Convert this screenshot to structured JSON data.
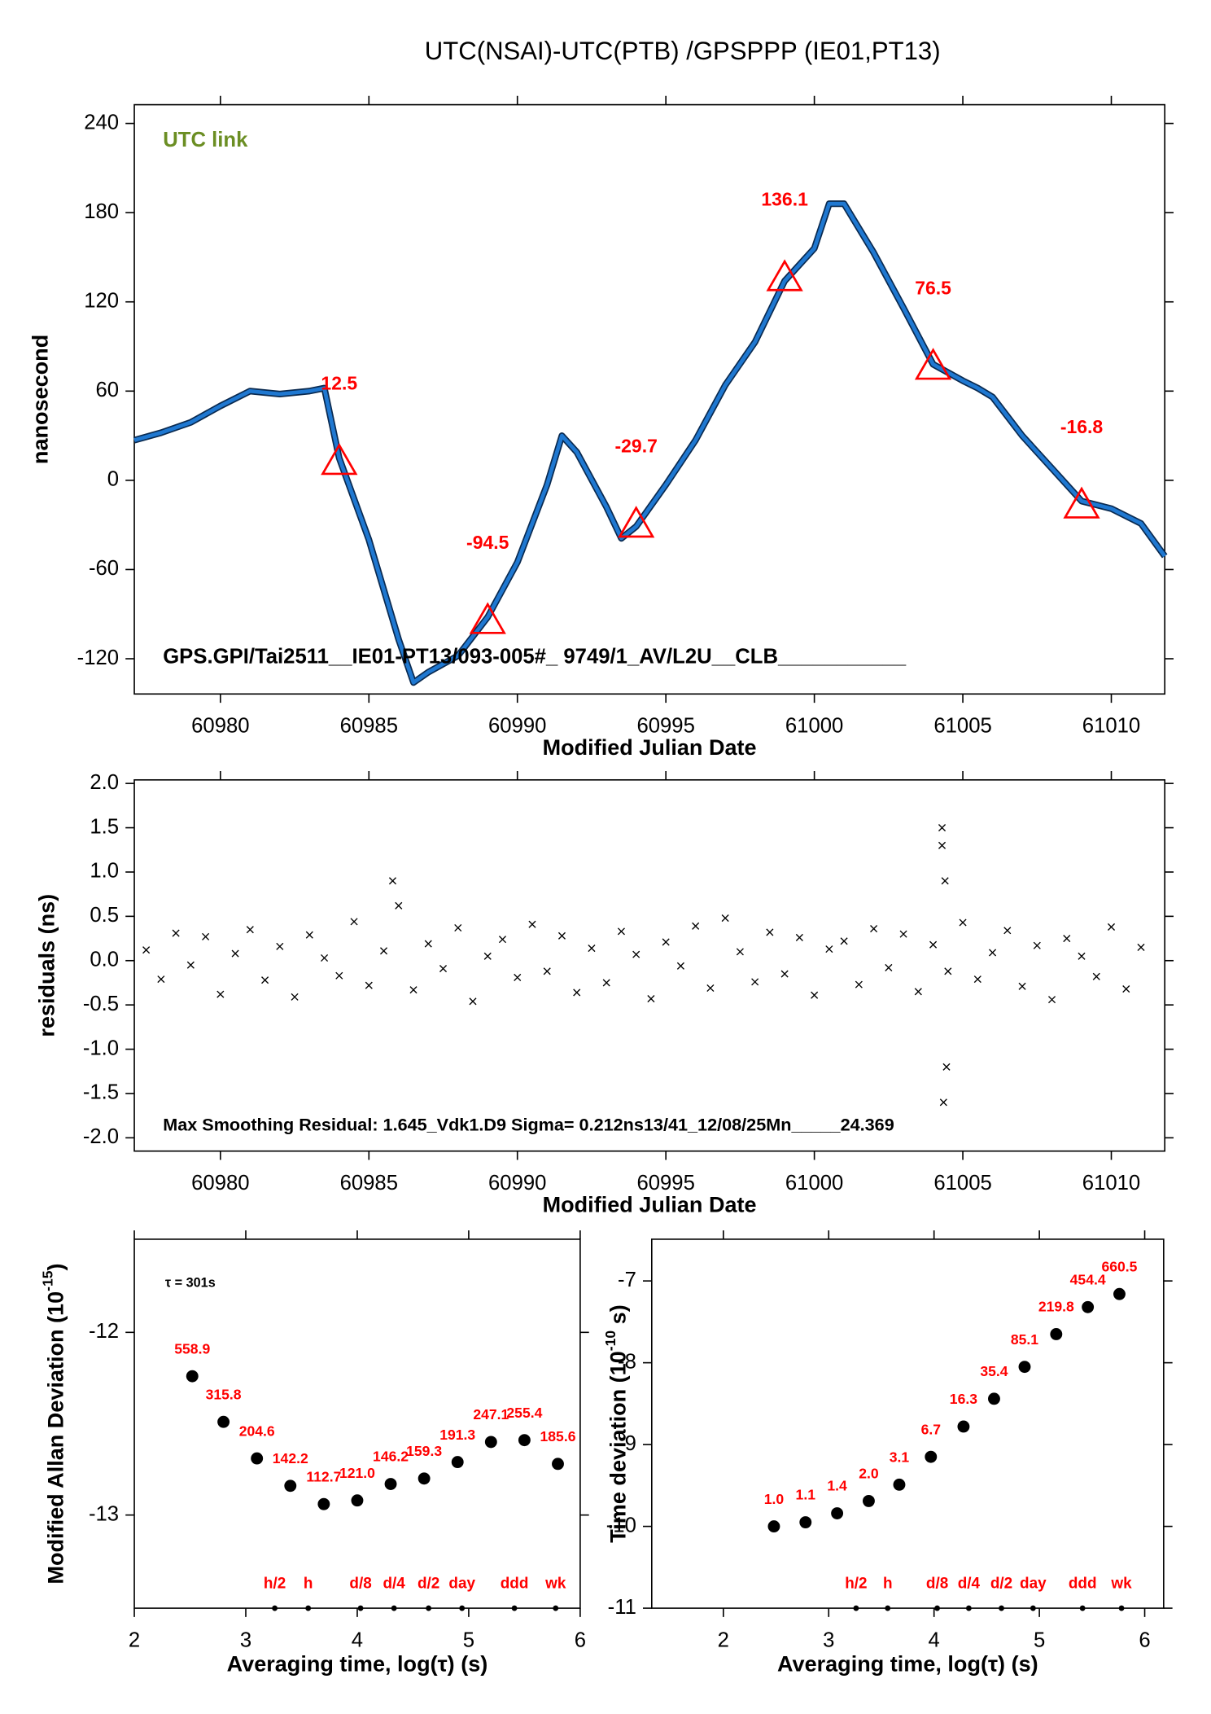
{
  "chart_data": [
    {
      "type": "line",
      "title": "UTC(NSAI)-UTC(PTB)  /GPSPPP  (IE01,PT13)",
      "annotation": "UTC link",
      "annotation_color": "#6b8e23",
      "footer_text": "GPS.GPI/Tai2511__IE01-PT13/093-005#_  9749/1_AV/L2U__CLB___________",
      "xlabel": "Modified Julian Date",
      "ylabel": "nanosecond",
      "xlim": [
        60977.1,
        61011.8
      ],
      "ylim": [
        -143.7,
        252.6
      ],
      "xticks": [
        60980,
        60985,
        60990,
        60995,
        61000,
        61005,
        61010
      ],
      "yticks": [
        -120,
        -60,
        0,
        60,
        120,
        180,
        240
      ],
      "x": [
        60977.1,
        60978,
        60979,
        60980,
        60981,
        60982,
        60983,
        60983.5,
        60984,
        60985,
        60986,
        60986.5,
        60987,
        60988,
        60989,
        60990,
        60991,
        60991.5,
        60992,
        60993,
        60993.5,
        60994,
        60995,
        60996,
        60997,
        60998,
        60999,
        61000,
        61000.5,
        61001,
        61002,
        61003,
        61004,
        61005,
        61005.5,
        61006,
        61007,
        61008,
        61009,
        61010,
        61011,
        61011.8
      ],
      "series": [
        {
          "color": "#1f78d1",
          "values": [
            27,
            32,
            39,
            50,
            60,
            58,
            60,
            62,
            15,
            -40,
            -107,
            -136,
            -129,
            -118,
            -92,
            -55,
            -3,
            30,
            19,
            -18,
            -39,
            -31,
            -3,
            27,
            64,
            93,
            134,
            156,
            186,
            186,
            153,
            116,
            78,
            67,
            62,
            56,
            30,
            8,
            -14,
            -19,
            -29,
            -51
          ]
        }
      ],
      "markers": {
        "color": "#ff0000",
        "x": [
          60984,
          60989,
          60994,
          60999,
          61004,
          61009
        ],
        "values": [
          12.5,
          -94.5,
          -29.7,
          136.1,
          76.5,
          -16.8
        ]
      }
    },
    {
      "type": "scatter",
      "footer_text": "Max Smoothing Residual: 1.645_Vdk1.D9  Sigma= 0.212ns13/41_12/08/25Mn_____24.369",
      "xlabel": "Modified Julian Date",
      "ylabel": "residuals (ns)",
      "xlim": [
        60977.1,
        61011.8
      ],
      "ylim": [
        -2.15,
        2.04
      ],
      "xticks": [
        60980,
        60985,
        60990,
        60995,
        61000,
        61005,
        61010
      ],
      "yticks": [
        {
          "value": -2,
          "label": "-2.0"
        },
        -1.5,
        {
          "value": -1,
          "label": "-1.0"
        },
        -0.5,
        {
          "value": 0,
          "label": "0.0"
        },
        0.5,
        {
          "value": 1,
          "label": "1.0"
        },
        1.5,
        {
          "value": 2,
          "label": "2.0"
        }
      ],
      "color": "#000000",
      "x": [
        60977.5,
        60978,
        60978.5,
        60979,
        60979.5,
        60980,
        60980.5,
        60981,
        60981.5,
        60982,
        60982.5,
        60983,
        60983.5,
        60984,
        60984.5,
        60985,
        60985.5,
        60986,
        60986.5,
        60987,
        60987.5,
        60988,
        60988.5,
        60989,
        60989.5,
        60990,
        60990.5,
        60991,
        60991.5,
        60992,
        60992.5,
        60993,
        60993.5,
        60994,
        60994.5,
        60995,
        60995.5,
        60996,
        60996.5,
        60997,
        60997.5,
        60998,
        60998.5,
        60999,
        60999.5,
        61000,
        61000.5,
        61001,
        61001.5,
        61002,
        61002.5,
        61003,
        61003.5,
        61004,
        61004.5,
        61005,
        61005.5,
        61006,
        61006.5,
        61007,
        61007.5,
        61008,
        61008.5,
        61009,
        61009.5,
        61010,
        61010.5,
        61011,
        61004.3,
        61004.35,
        61004.4,
        61004.45,
        61004.3,
        60985.8
      ],
      "values": [
        0.12,
        -0.21,
        0.31,
        -0.05,
        0.27,
        -0.38,
        0.08,
        0.35,
        -0.22,
        0.16,
        -0.41,
        0.29,
        0.03,
        -0.17,
        0.44,
        -0.28,
        0.11,
        0.62,
        -0.33,
        0.19,
        -0.09,
        0.37,
        -0.46,
        0.05,
        0.24,
        -0.19,
        0.41,
        -0.12,
        0.28,
        -0.36,
        0.14,
        -0.25,
        0.33,
        0.07,
        -0.43,
        0.21,
        -0.06,
        0.39,
        -0.31,
        0.48,
        0.1,
        -0.24,
        0.32,
        -0.15,
        0.26,
        -0.39,
        0.13,
        0.22,
        -0.27,
        0.36,
        -0.08,
        0.3,
        -0.35,
        0.18,
        -0.12,
        0.43,
        -0.21,
        0.09,
        0.34,
        -0.29,
        0.17,
        -0.44,
        0.25,
        0.05,
        -0.18,
        0.38,
        -0.32,
        0.15,
        1.5,
        -1.6,
        0.9,
        -1.2,
        1.3,
        0.9
      ]
    },
    {
      "type": "scatter",
      "annotation": "τ = 301s",
      "xlabel": "Averaging time, log(τ) (s)",
      "ylabel": "Modified Allan Deviation (10",
      "ylabel_exponent": "-15",
      "ylabel_end": ")",
      "xlim": [
        2,
        6
      ],
      "ylim": [
        -13.51,
        -11.49
      ],
      "xticks": [
        2,
        3,
        4,
        5,
        6
      ],
      "yticks": [
        -13,
        -12
      ],
      "color": "#000000",
      "label_color": "#ff0000",
      "x": [
        2.52,
        2.8,
        3.1,
        3.4,
        3.7,
        4.0,
        4.3,
        4.6,
        4.9,
        5.2,
        5.5,
        5.8
      ],
      "values": [
        -12.24,
        -12.49,
        -12.69,
        -12.84,
        -12.94,
        -12.92,
        -12.83,
        -12.8,
        -12.71,
        -12.6,
        -12.59,
        -12.72
      ],
      "labels": [
        "558.9",
        "315.8",
        "204.6",
        "142.2",
        "112.7",
        "121.0",
        "146.2",
        "159.3",
        "191.3",
        "247.1",
        "255.4",
        "185.6"
      ],
      "scale_marks": {
        "labels": [
          "h/2",
          "h",
          "d/8",
          "d/4",
          "d/2",
          "day",
          "ddd",
          "wk"
        ],
        "x": [
          3.26,
          3.56,
          4.03,
          4.33,
          4.64,
          4.94,
          5.41,
          5.78
        ]
      }
    },
    {
      "type": "scatter",
      "xlabel": "Averaging time, log(τ) (s)",
      "ylabel": "Time deviation (10",
      "ylabel_exponent": "-10",
      "ylabel_end": " s)",
      "xlim": [
        1.32,
        6.18
      ],
      "ylim": [
        -11,
        -6.49
      ],
      "xticks": [
        2,
        3,
        4,
        5,
        6
      ],
      "yticks": [
        -11,
        -10,
        -9,
        -8,
        -7
      ],
      "color": "#000000",
      "label_color": "#ff0000",
      "x": [
        2.48,
        2.78,
        3.08,
        3.38,
        3.67,
        3.97,
        4.28,
        4.57,
        4.86,
        5.16,
        5.46,
        5.76
      ],
      "values": [
        -10.0,
        -9.95,
        -9.84,
        -9.69,
        -9.49,
        -9.15,
        -8.78,
        -8.44,
        -8.05,
        -7.65,
        -7.32,
        -7.16
      ],
      "labels": [
        "1.0",
        "1.1",
        "1.4",
        "2.0",
        "3.1",
        "6.7",
        "16.3",
        "35.4",
        "85.1",
        "219.8",
        "454.4",
        "660.5"
      ],
      "scale_marks": {
        "labels": [
          "h/2",
          "h",
          "d/8",
          "d/4",
          "d/2",
          "day",
          "ddd",
          "wk"
        ],
        "x": [
          3.26,
          3.56,
          4.03,
          4.33,
          4.64,
          4.94,
          5.41,
          5.78
        ]
      }
    }
  ]
}
